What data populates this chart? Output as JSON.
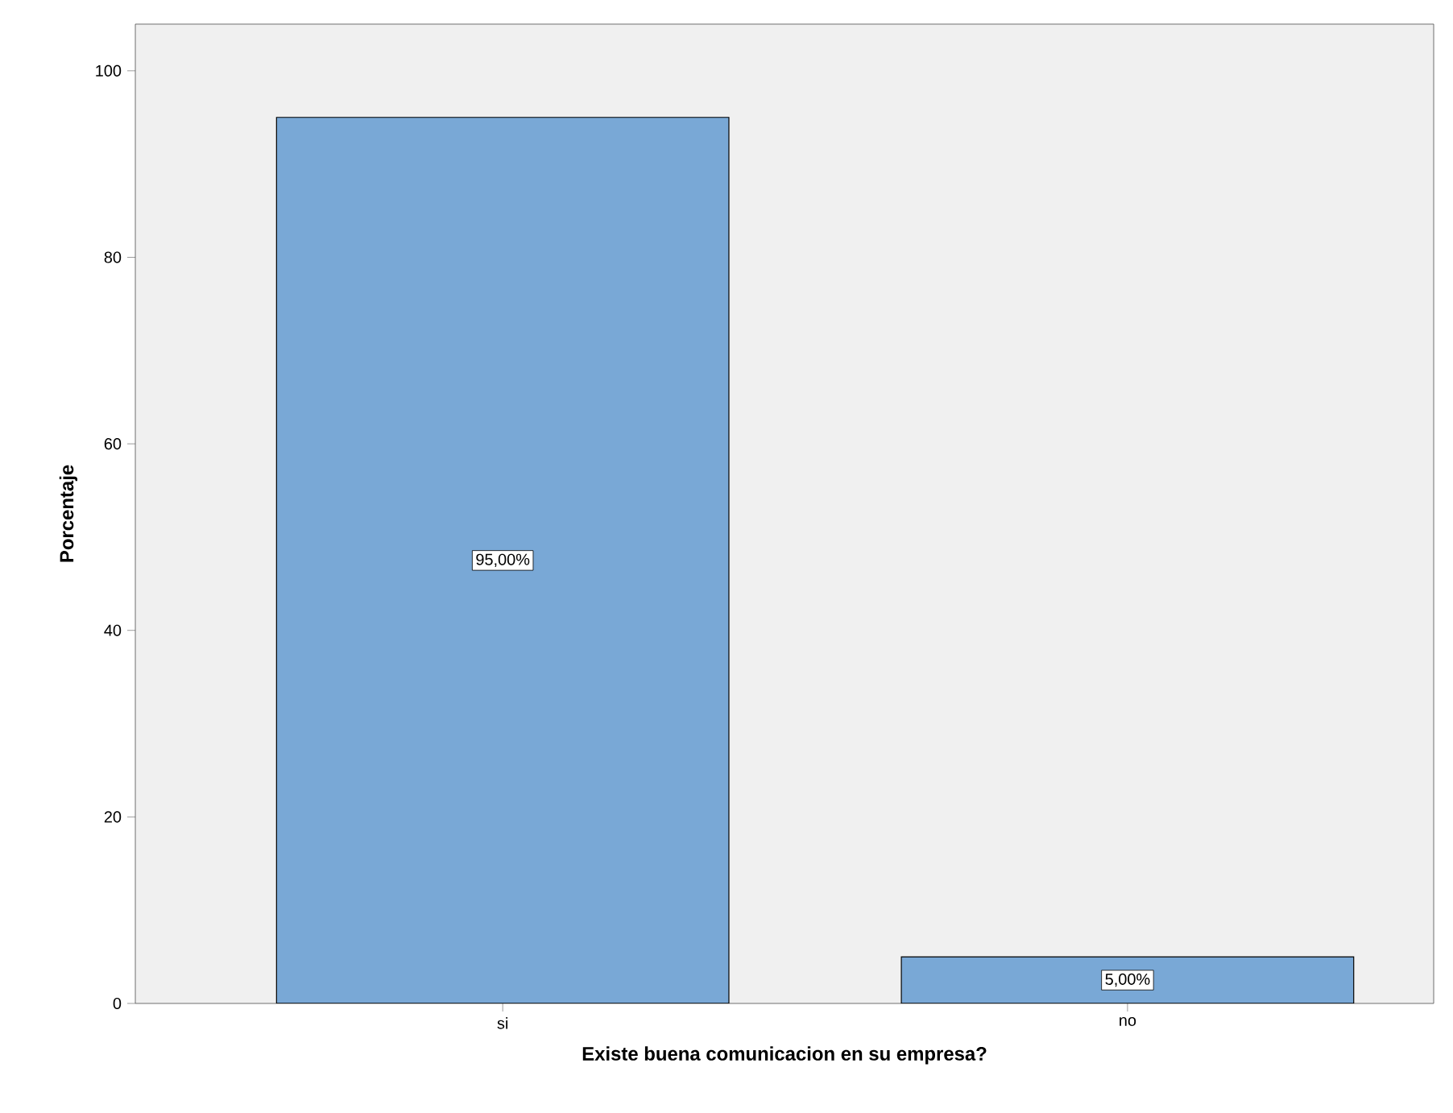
{
  "chart_data": {
    "type": "bar",
    "xlabel": "Existe buena comunicacion en su empresa?",
    "ylabel": "Porcentaje",
    "categories": [
      "si",
      "no"
    ],
    "values": [
      95,
      5
    ],
    "value_labels": [
      "95,00%",
      "5,00%"
    ],
    "color": "#79a8d6",
    "ylim": [
      0,
      105
    ],
    "yticks": [
      0,
      20,
      40,
      60,
      80,
      100
    ],
    "grid": false
  }
}
